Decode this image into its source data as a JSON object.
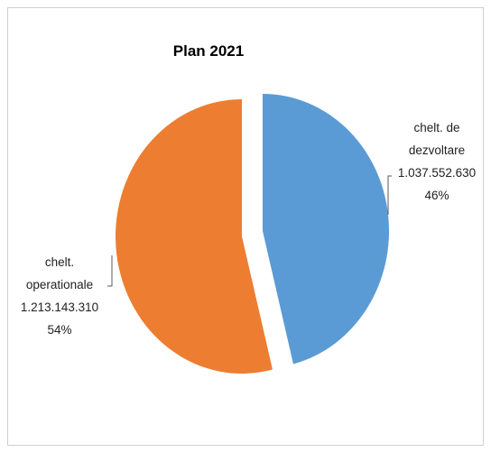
{
  "chart_data": {
    "type": "pie",
    "title": "Plan 2021",
    "slices": [
      {
        "label_lines": [
          "chelt. de",
          "dezvoltare"
        ],
        "value_text": "1.037.552.630",
        "percent_text": "46%",
        "value": 1037552630,
        "percent": 46,
        "color": "#5B9BD5"
      },
      {
        "label_lines": [
          "chelt.",
          "operationale"
        ],
        "value_text": "1.213.143.310",
        "percent_text": "54%",
        "value": 1213143310,
        "percent": 54,
        "color": "#ED7D31"
      }
    ],
    "start_angle_deg": 0,
    "exploded": true,
    "legend": "none"
  }
}
